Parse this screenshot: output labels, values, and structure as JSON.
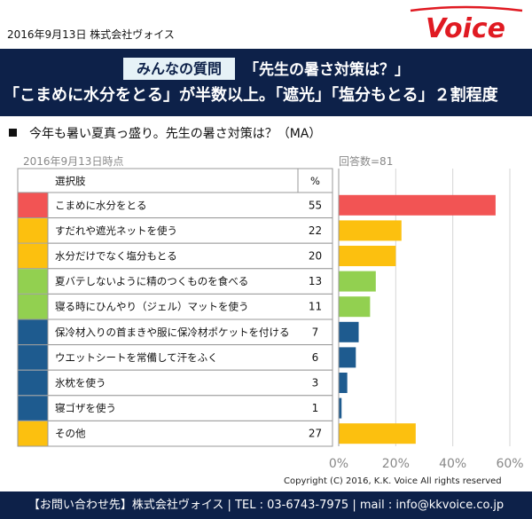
{
  "header": {
    "date_company": "2016年9月13日  株式会社ヴォイス",
    "logo_text": "Voice"
  },
  "banner": {
    "tag": "みんなの質問",
    "question": "「先生の暑さ対策は？」",
    "headline": "「こまめに水分をとる」が半数以上。「遮光」「塩分もとる」２割程度"
  },
  "survey": {
    "question": "今年も暑い夏真っ盛り。先生の暑さ対策は？（MA）",
    "as_of": "2016年9月13日時点",
    "respondents": "回答数=81"
  },
  "table": {
    "col_choice": "選択肢",
    "col_pct": "%"
  },
  "colors": {
    "navy": "#0d2149",
    "red": "#f25454",
    "yellow": "#fcc00f",
    "green": "#92d050",
    "blue": "#1e5b8f",
    "logo_red": "#e01a22"
  },
  "chart_data": {
    "type": "bar",
    "orientation": "horizontal",
    "categories": [
      "こまめに水分をとる",
      "すだれや遮光ネットを使う",
      "水分だけでなく塩分もとる",
      "夏バテしないように精のつくものを食べる",
      "寝る時にひんやり（ジェル）マットを使う",
      "保冷材入りの首まきや服に保冷材ポケットを付ける",
      "ウエットシートを常備して汗をふく",
      "氷枕を使う",
      "寝ゴザを使う",
      "その他"
    ],
    "values": [
      55,
      22,
      20,
      13,
      11,
      7,
      6,
      3,
      1,
      27
    ],
    "colors": [
      "#f25454",
      "#fcc00f",
      "#fcc00f",
      "#92d050",
      "#92d050",
      "#1e5b8f",
      "#1e5b8f",
      "#1e5b8f",
      "#1e5b8f",
      "#fcc00f"
    ],
    "xlim": [
      0,
      60
    ],
    "xticks": [
      0,
      20,
      40,
      60
    ],
    "xtick_labels": [
      "0%",
      "20%",
      "40%",
      "60%"
    ],
    "grid": true,
    "unit": "%"
  },
  "footer": {
    "copyright": "Copyright  (C)  2016, K.K. Voice All rights reserved",
    "contact": "【お問い合わせ先】株式会社ヴォイス | TEL : 03-6743-7975 | mail : info@kkvoice.co.jp"
  }
}
